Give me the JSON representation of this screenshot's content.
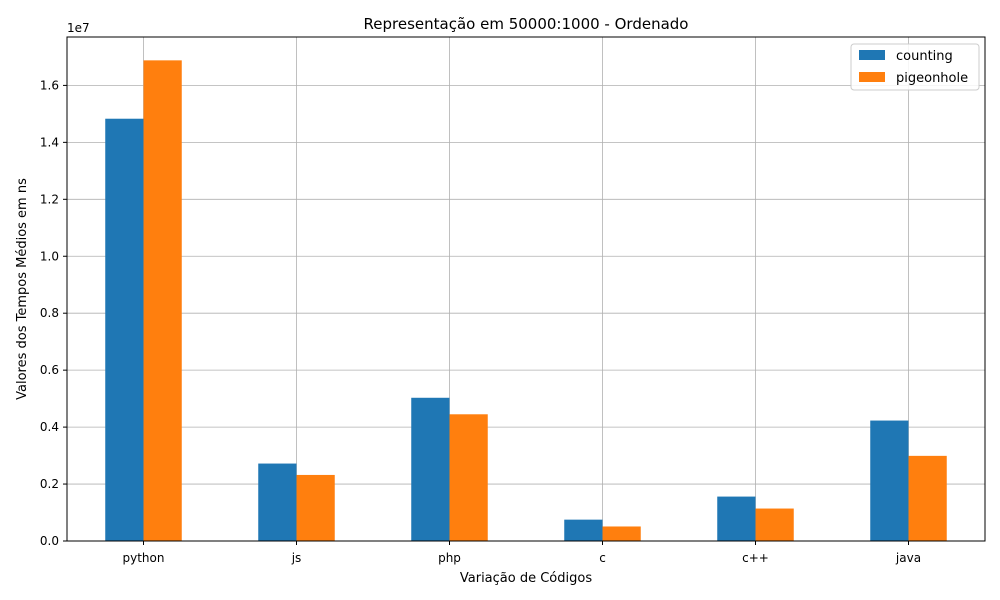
{
  "chart_data": {
    "type": "bar",
    "title": "Representação em 50000:1000 - Ordenado",
    "xlabel": "Variação de Códigos",
    "ylabel": "Valores dos Tempos Médios em ns",
    "y_multiplier_label": "1e7",
    "categories": [
      "python",
      "js",
      "php",
      "c",
      "c++",
      "java"
    ],
    "series": [
      {
        "name": "counting",
        "color": "#1f77b4",
        "values": [
          14830000,
          2720000,
          5030000,
          750000,
          1560000,
          4230000
        ]
      },
      {
        "name": "pigeonhole",
        "color": "#ff7f0e",
        "values": [
          16880000,
          2320000,
          4450000,
          510000,
          1140000,
          2990000
        ]
      }
    ],
    "ylim": [
      0,
      17700000
    ],
    "yticks": [
      0,
      2000000,
      4000000,
      6000000,
      8000000,
      10000000,
      12000000,
      14000000,
      16000000
    ],
    "ytick_labels": [
      "0.0",
      "0.2",
      "0.4",
      "0.6",
      "0.8",
      "1.0",
      "1.2",
      "1.4",
      "1.6"
    ],
    "grid": true,
    "legend_position": "top-right"
  }
}
